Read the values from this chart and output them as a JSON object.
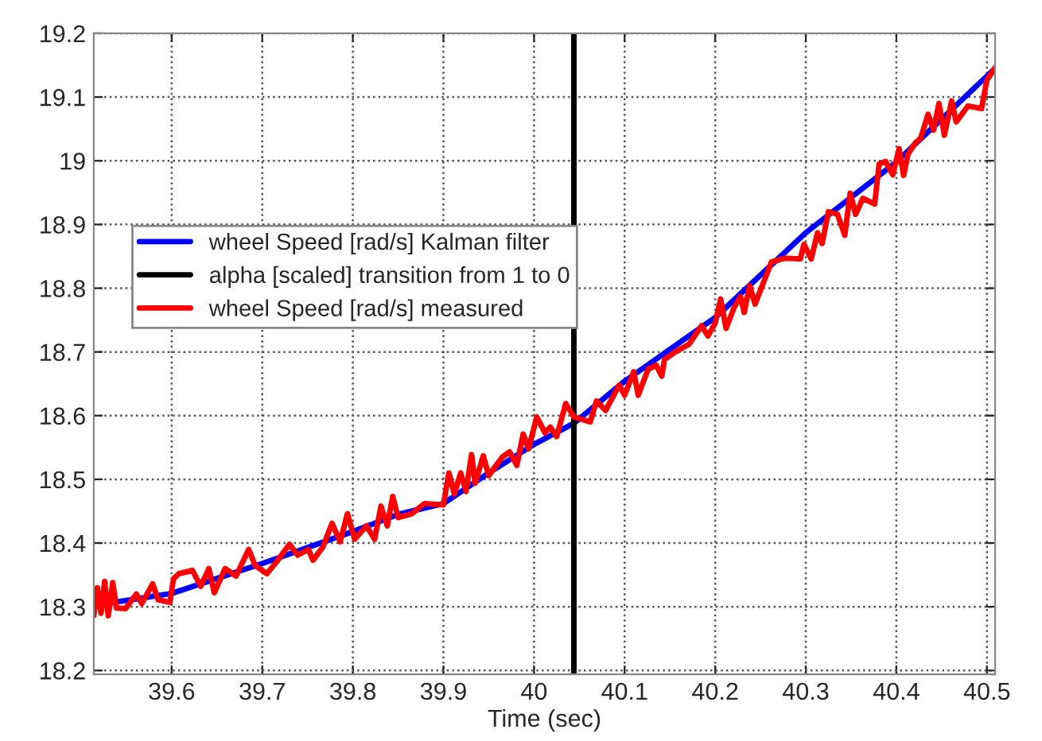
{
  "chart_data": {
    "type": "line",
    "xlabel": "Time (sec)",
    "xlim": [
      39.514,
      40.509
    ],
    "ylim": [
      18.194,
      19.2
    ],
    "xticks": [
      39.6,
      39.7,
      39.8,
      39.9,
      40,
      40.1,
      40.2,
      40.3,
      40.4,
      40.5
    ],
    "yticks": [
      18.2,
      18.3,
      18.4,
      18.5,
      18.6,
      18.7,
      18.8,
      18.9,
      19,
      19.1,
      19.2
    ],
    "grid": true,
    "legend": "center left",
    "line_style": "solid",
    "series": [
      {
        "name": "wheel Speed [rad/s] Kalman filter",
        "color": "#0000ff",
        "x": [
          39.514,
          39.6,
          39.7,
          39.8,
          39.85,
          39.9,
          39.95,
          40.0,
          40.044,
          40.1,
          40.2,
          40.3,
          40.4,
          40.509
        ],
        "values": [
          18.302,
          18.321,
          18.368,
          18.418,
          18.445,
          18.462,
          18.51,
          18.555,
          18.588,
          18.654,
          18.754,
          18.887,
          18.998,
          19.145
        ]
      },
      {
        "name": "alpha [scaled] transition from 1 to 0",
        "color": "#000000",
        "x": [
          40.044,
          40.044
        ],
        "values": [
          18.194,
          19.2
        ]
      },
      {
        "name": "wheel Speed [rad/s] measured",
        "color": "#ff0000",
        "x": [
          39.514,
          39.518,
          39.522,
          39.526,
          39.53,
          39.535,
          39.539,
          39.549,
          39.561,
          39.567,
          39.579,
          39.585,
          39.598,
          39.602,
          39.608,
          39.623,
          39.632,
          39.641,
          39.647,
          39.659,
          39.671,
          39.685,
          39.692,
          39.705,
          39.715,
          39.73,
          39.739,
          39.751,
          39.756,
          39.767,
          39.777,
          39.786,
          39.794,
          39.802,
          39.815,
          39.824,
          39.831,
          39.838,
          39.844,
          39.85,
          39.865,
          39.879,
          39.9,
          39.906,
          39.912,
          39.919,
          39.925,
          39.931,
          39.935,
          39.944,
          39.95,
          39.965,
          39.973,
          39.981,
          39.988,
          39.994,
          40.003,
          40.012,
          40.018,
          40.025,
          40.035,
          40.044,
          40.062,
          40.069,
          40.079,
          40.094,
          40.1,
          40.11,
          40.115,
          40.126,
          40.135,
          40.141,
          40.144,
          40.156,
          40.171,
          40.185,
          40.192,
          40.2,
          40.206,
          40.212,
          40.221,
          40.228,
          40.232,
          40.238,
          40.244,
          40.262,
          40.276,
          40.294,
          40.298,
          40.306,
          40.313,
          40.318,
          40.325,
          40.335,
          40.343,
          40.349,
          40.355,
          40.363,
          40.376,
          40.381,
          40.388,
          40.396,
          40.403,
          40.408,
          40.413,
          40.421,
          40.427,
          40.435,
          40.441,
          40.447,
          40.453,
          40.461,
          40.466,
          40.479,
          40.494,
          40.5,
          40.509
        ],
        "values": [
          18.286,
          18.33,
          18.29,
          18.34,
          18.286,
          18.338,
          18.298,
          18.297,
          18.32,
          18.305,
          18.336,
          18.311,
          18.307,
          18.344,
          18.352,
          18.357,
          18.332,
          18.36,
          18.322,
          18.36,
          18.348,
          18.39,
          18.365,
          18.352,
          18.369,
          18.398,
          18.381,
          18.39,
          18.373,
          18.394,
          18.431,
          18.402,
          18.446,
          18.406,
          18.427,
          18.406,
          18.458,
          18.427,
          18.473,
          18.44,
          18.446,
          18.462,
          18.46,
          18.51,
          18.477,
          18.51,
          18.481,
          18.539,
          18.494,
          18.537,
          18.506,
          18.535,
          18.543,
          18.522,
          18.571,
          18.548,
          18.598,
          18.573,
          18.582,
          18.567,
          18.619,
          18.598,
          18.59,
          18.623,
          18.608,
          18.648,
          18.632,
          18.669,
          18.632,
          18.673,
          18.679,
          18.662,
          18.688,
          18.7,
          18.712,
          18.741,
          18.725,
          18.745,
          18.783,
          18.737,
          18.77,
          18.787,
          18.762,
          18.804,
          18.775,
          18.841,
          18.847,
          18.846,
          18.869,
          18.846,
          18.887,
          18.87,
          18.92,
          18.916,
          18.883,
          18.949,
          18.916,
          18.941,
          18.932,
          18.995,
          18.999,
          18.978,
          19.019,
          18.977,
          19.011,
          19.028,
          19.036,
          19.073,
          19.048,
          19.09,
          19.04,
          19.094,
          19.061,
          19.086,
          19.082,
          19.127,
          19.146
        ]
      }
    ]
  }
}
